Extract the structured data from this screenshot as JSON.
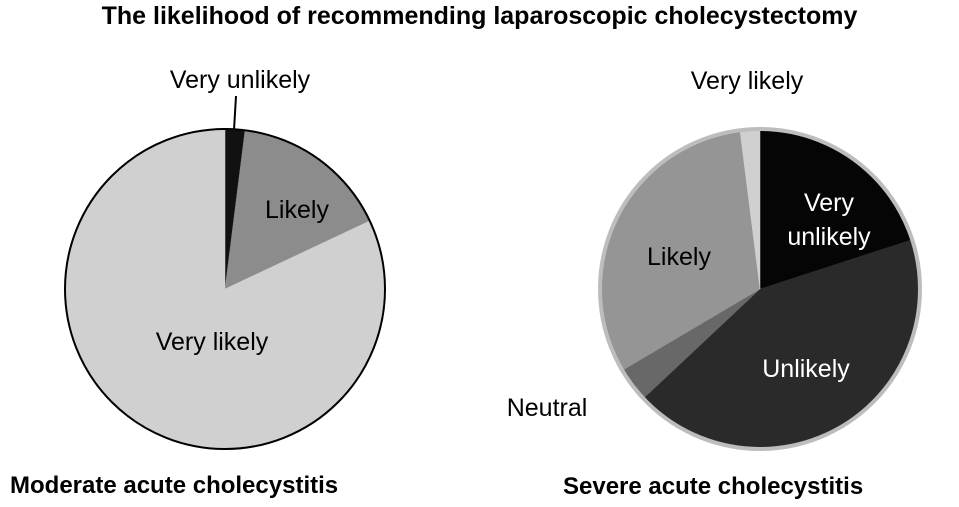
{
  "chart_title": "The likelihood of recommending laparoscopic cholecystectomy",
  "chart_data": [
    {
      "type": "pie",
      "title": "Moderate acute cholecystitis",
      "slices": [
        {
          "label": "Very unlikely",
          "value": 2,
          "color": "#111111",
          "text_color": "#000000"
        },
        {
          "label": "Likely",
          "value": 16,
          "color": "#8c8c8c",
          "text_color": "#000000"
        },
        {
          "label": "Very likely",
          "value": 82,
          "color": "#d0d0d0",
          "text_color": "#000000"
        }
      ]
    },
    {
      "type": "pie",
      "title": "Severe acute cholecystitis",
      "slices": [
        {
          "label": "Very unlikely",
          "value": 20,
          "color": "#050505",
          "text_color": "#ffffff"
        },
        {
          "label": "Unlikely",
          "value": 43,
          "color": "#2a2a2a",
          "text_color": "#ffffff"
        },
        {
          "label": "Neutral",
          "value": 3.5,
          "color": "#686868",
          "text_color": "#000000"
        },
        {
          "label": "Likely",
          "value": 31.5,
          "color": "#959595",
          "text_color": "#000000"
        },
        {
          "label": "Very likely",
          "value": 2,
          "color": "#d0d0d0",
          "text_color": "#000000"
        }
      ]
    }
  ]
}
